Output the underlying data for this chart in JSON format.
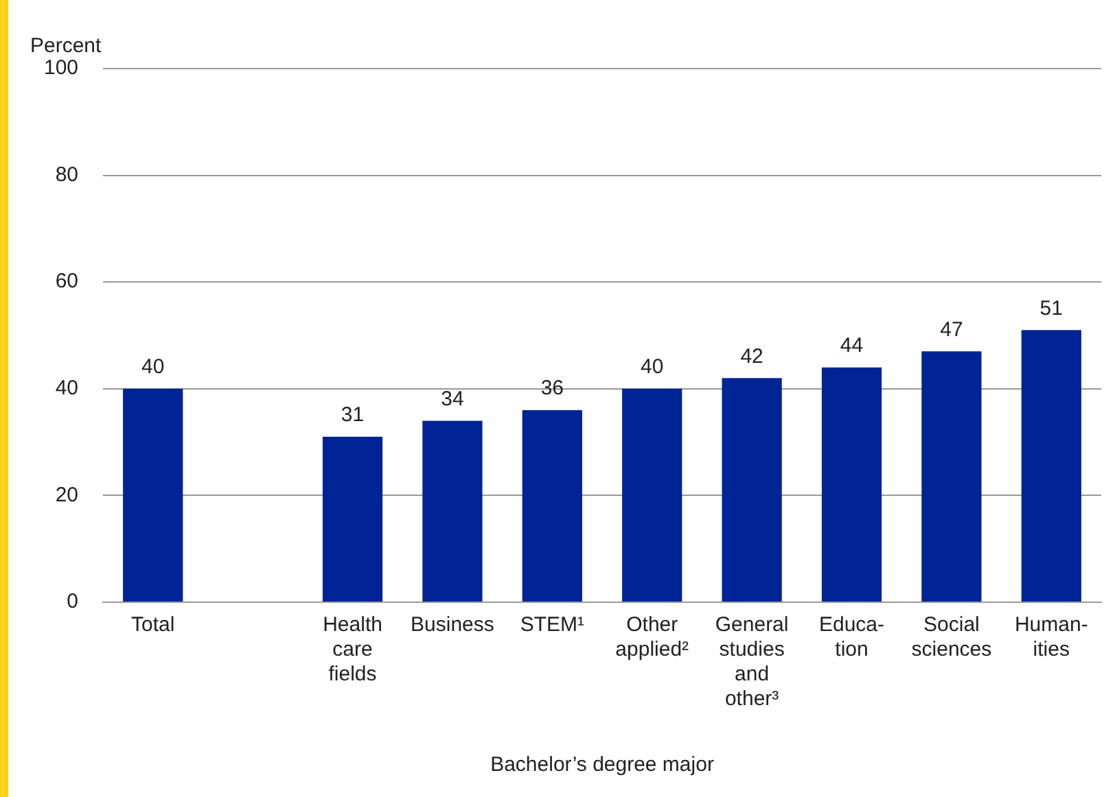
{
  "chart_data": {
    "type": "bar",
    "ylabel": "Percent",
    "xlabel": "Bachelor’s degree major",
    "categories": [
      "Total",
      null,
      "Health\ncare\nfields",
      "Business",
      "STEM¹",
      "Other\napplied²",
      "General\nstudies\nand\nother³",
      "Educa-\ntion",
      "Social\nsciences",
      "Human-\nities"
    ],
    "values": [
      40,
      null,
      31,
      34,
      36,
      40,
      42,
      44,
      47,
      51
    ],
    "color": "#002395",
    "ylim": [
      0,
      100
    ],
    "yticks": [
      0,
      20,
      40,
      60,
      80,
      100
    ],
    "grid": "y",
    "data_labels": true
  }
}
